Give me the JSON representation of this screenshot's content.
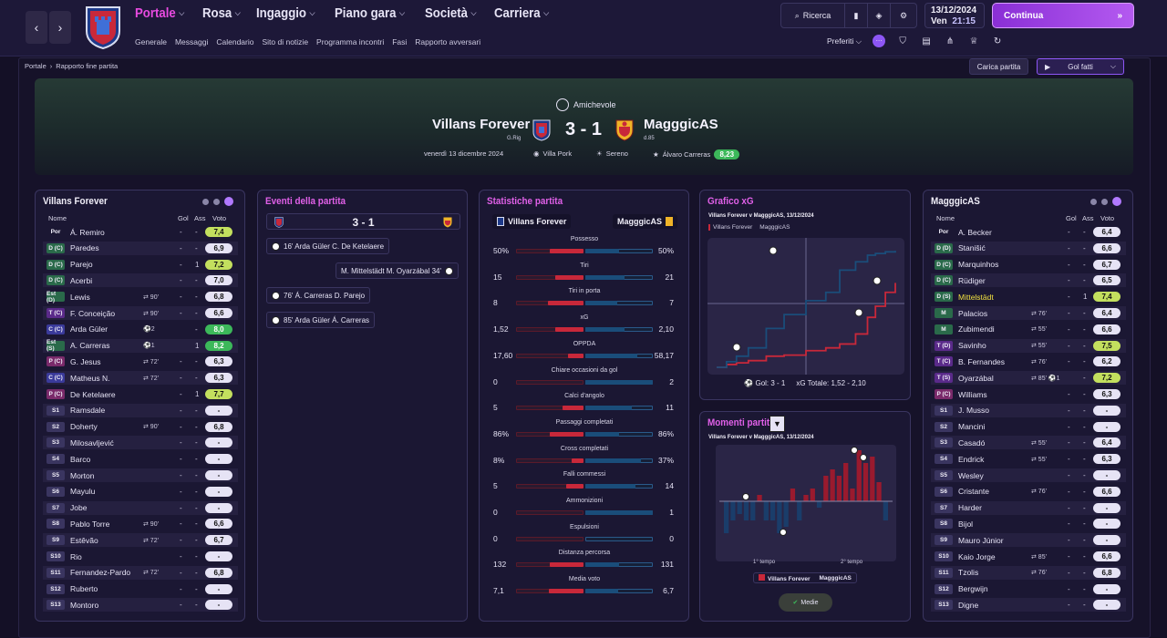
{
  "topbar": {
    "menu": [
      "Portale",
      "Rosa",
      "Ingaggio",
      "Piano gara",
      "Società",
      "Carriera"
    ],
    "submenu": [
      "Generale",
      "Messaggi",
      "Calendario",
      "Sito di notizie",
      "Programma incontri",
      "Fasi",
      "Rapporto avversari"
    ],
    "search": "Ricerca",
    "date": "13/12/2024",
    "day": "Ven",
    "time": "21:15",
    "continue": "Continua",
    "prefs": "Preferiti"
  },
  "crumb": [
    "Portale",
    "Rapporto fine partita"
  ],
  "buttons": {
    "carica": "Carica partita",
    "golfatti": "Gol fatti"
  },
  "match": {
    "competition": "Amichevole",
    "home": "Villans Forever",
    "home_sub": "G.Rig",
    "away": "MagggicAS",
    "away_sub": "d.85",
    "score": "3 - 1",
    "date": "venerdì 13 dicembre 2024",
    "stadium": "Villa Pork",
    "weather": "Sereno",
    "mvp": "Álvaro Carreras",
    "mvp_rating": "8,23"
  },
  "colors": {
    "accent": "#e84be0",
    "home": "#c8283a",
    "away": "#1a4d7a",
    "good": "#3cb85a",
    "ok": "#c3df5e",
    "base": "#e6e3f5"
  },
  "home_panel": {
    "title": "Villans Forever",
    "headers": [
      "Nome",
      "Gol",
      "Ass",
      "Voto"
    ],
    "players": [
      {
        "pos": "Por",
        "pc": "none",
        "name": "Á. Remiro",
        "evt": "",
        "gol": "-",
        "ass": "-",
        "vote": "7,4",
        "vc": "#c3df5e"
      },
      {
        "pos": "D (C)",
        "pc": "#2a6a4a",
        "name": "Paredes",
        "evt": "",
        "gol": "-",
        "ass": "-",
        "vote": "6,9",
        "vc": "#e6e3f5"
      },
      {
        "pos": "D (C)",
        "pc": "#2a6a4a",
        "name": "Parejo",
        "evt": "",
        "gol": "-",
        "ass": "1",
        "vote": "7,2",
        "vc": "#c3df5e"
      },
      {
        "pos": "D (C)",
        "pc": "#2a6a4a",
        "name": "Acerbi",
        "evt": "",
        "gol": "-",
        "ass": "-",
        "vote": "7,0",
        "vc": "#e6e3f5"
      },
      {
        "pos": "Est (D)",
        "pc": "#2a6a4a",
        "name": "Lewis",
        "evt": "⇄ 90'",
        "gol": "-",
        "ass": "-",
        "vote": "6,8",
        "vc": "#e6e3f5"
      },
      {
        "pos": "T (C)",
        "pc": "#5a2a8a",
        "name": "F. Conceição",
        "evt": "⇄ 90'",
        "gol": "-",
        "ass": "-",
        "vote": "6,6",
        "vc": "#e6e3f5"
      },
      {
        "pos": "C (C)",
        "pc": "#3a3a9a",
        "name": "Arda Güler",
        "evt": "⚽2",
        "gol": "",
        "ass": "-",
        "vote": "8,0",
        "vc": "#3cb85a"
      },
      {
        "pos": "Est (S)",
        "pc": "#2a6a4a",
        "name": "A. Carreras",
        "evt": "⚽1",
        "gol": "",
        "ass": "1",
        "vote": "8,2",
        "vc": "#3cb85a"
      },
      {
        "pos": "P (C)",
        "pc": "#7a2a6a",
        "name": "G. Jesus",
        "evt": "⇄ 72'",
        "gol": "-",
        "ass": "-",
        "vote": "6,3",
        "vc": "#e6e3f5"
      },
      {
        "pos": "C (C)",
        "pc": "#3a3a9a",
        "name": "Matheus N.",
        "evt": "⇄ 72'",
        "gol": "-",
        "ass": "-",
        "vote": "6,3",
        "vc": "#e6e3f5"
      },
      {
        "pos": "P (C)",
        "pc": "#7a2a6a",
        "name": "De Ketelaere",
        "evt": "",
        "gol": "-",
        "ass": "1",
        "vote": "7,7",
        "vc": "#c3df5e"
      },
      {
        "pos": "S1",
        "pc": "#3a3560",
        "name": "Ramsdale",
        "evt": "",
        "gol": "-",
        "ass": "-",
        "vote": "-",
        "vc": "#e6e3f5"
      },
      {
        "pos": "S2",
        "pc": "#3a3560",
        "name": "Doherty",
        "evt": "⇄ 90'",
        "gol": "-",
        "ass": "-",
        "vote": "6,8",
        "vc": "#e6e3f5"
      },
      {
        "pos": "S3",
        "pc": "#3a3560",
        "name": "Milosavljević",
        "evt": "",
        "gol": "-",
        "ass": "-",
        "vote": "-",
        "vc": "#e6e3f5"
      },
      {
        "pos": "S4",
        "pc": "#3a3560",
        "name": "Barco",
        "evt": "",
        "gol": "-",
        "ass": "-",
        "vote": "-",
        "vc": "#e6e3f5"
      },
      {
        "pos": "S5",
        "pc": "#3a3560",
        "name": "Morton",
        "evt": "",
        "gol": "-",
        "ass": "-",
        "vote": "-",
        "vc": "#e6e3f5"
      },
      {
        "pos": "S6",
        "pc": "#3a3560",
        "name": "Mayulu",
        "evt": "",
        "gol": "-",
        "ass": "-",
        "vote": "-",
        "vc": "#e6e3f5"
      },
      {
        "pos": "S7",
        "pc": "#3a3560",
        "name": "Jobe",
        "evt": "",
        "gol": "-",
        "ass": "-",
        "vote": "-",
        "vc": "#e6e3f5"
      },
      {
        "pos": "S8",
        "pc": "#3a3560",
        "name": "Pablo Torre",
        "evt": "⇄ 90'",
        "gol": "-",
        "ass": "-",
        "vote": "6,6",
        "vc": "#e6e3f5"
      },
      {
        "pos": "S9",
        "pc": "#3a3560",
        "name": "Estêvão",
        "evt": "⇄ 72'",
        "gol": "-",
        "ass": "-",
        "vote": "6,7",
        "vc": "#e6e3f5"
      },
      {
        "pos": "S10",
        "pc": "#3a3560",
        "name": "Rio",
        "evt": "",
        "gol": "-",
        "ass": "-",
        "vote": "-",
        "vc": "#e6e3f5"
      },
      {
        "pos": "S11",
        "pc": "#3a3560",
        "name": "Fernandez-Pardo",
        "evt": "⇄ 72'",
        "gol": "-",
        "ass": "-",
        "vote": "6,8",
        "vc": "#e6e3f5"
      },
      {
        "pos": "S12",
        "pc": "#3a3560",
        "name": "Ruberto",
        "evt": "",
        "gol": "-",
        "ass": "-",
        "vote": "-",
        "vc": "#e6e3f5"
      },
      {
        "pos": "S13",
        "pc": "#3a3560",
        "name": "Montoro",
        "evt": "",
        "gol": "-",
        "ass": "-",
        "vote": "-",
        "vc": "#e6e3f5"
      }
    ]
  },
  "away_panel": {
    "title": "MagggicAS",
    "headers": [
      "Nome",
      "Gol",
      "Ass",
      "Voto"
    ],
    "players": [
      {
        "pos": "Por",
        "pc": "none",
        "name": "A. Becker",
        "evt": "",
        "gol": "-",
        "ass": "-",
        "vote": "6,4",
        "vc": "#e6e3f5"
      },
      {
        "pos": "D (D)",
        "pc": "#2a6a4a",
        "name": "Stanišić",
        "evt": "",
        "gol": "-",
        "ass": "-",
        "vote": "6,6",
        "vc": "#e6e3f5"
      },
      {
        "pos": "D (C)",
        "pc": "#2a6a4a",
        "name": "Marquinhos",
        "evt": "",
        "gol": "-",
        "ass": "-",
        "vote": "6,7",
        "vc": "#e6e3f5"
      },
      {
        "pos": "D (C)",
        "pc": "#2a6a4a",
        "name": "Rüdiger",
        "evt": "",
        "gol": "-",
        "ass": "-",
        "vote": "6,5",
        "vc": "#e6e3f5"
      },
      {
        "pos": "D (S)",
        "pc": "#2a6a4a",
        "name": "Mittelstädt",
        "evt": "",
        "gol": "-",
        "ass": "1",
        "vote": "7,4",
        "vc": "#c3df5e",
        "hl": true
      },
      {
        "pos": "M",
        "pc": "#2a6a4a",
        "name": "Palacios",
        "evt": "⇄ 76'",
        "gol": "-",
        "ass": "-",
        "vote": "6,4",
        "vc": "#e6e3f5"
      },
      {
        "pos": "M",
        "pc": "#2a6a4a",
        "name": "Zubimendi",
        "evt": "⇄ 55'",
        "gol": "-",
        "ass": "-",
        "vote": "6,6",
        "vc": "#e6e3f5"
      },
      {
        "pos": "T (D)",
        "pc": "#5a2a8a",
        "name": "Savinho",
        "evt": "⇄ 55'",
        "gol": "-",
        "ass": "-",
        "vote": "7,5",
        "vc": "#c3df5e"
      },
      {
        "pos": "T (C)",
        "pc": "#5a2a8a",
        "name": "B. Fernandes",
        "evt": "⇄ 76'",
        "gol": "-",
        "ass": "-",
        "vote": "6,2",
        "vc": "#e6e3f5"
      },
      {
        "pos": "T (S)",
        "pc": "#5a2a8a",
        "name": "Oyarzábal",
        "evt": "⇄ 85' ⚽1",
        "gol": "",
        "ass": "-",
        "vote": "7,2",
        "vc": "#c3df5e"
      },
      {
        "pos": "P (C)",
        "pc": "#7a2a6a",
        "name": "Williams",
        "evt": "",
        "gol": "-",
        "ass": "-",
        "vote": "6,3",
        "vc": "#e6e3f5"
      },
      {
        "pos": "S1",
        "pc": "#3a3560",
        "name": "J. Musso",
        "evt": "",
        "gol": "-",
        "ass": "-",
        "vote": "-",
        "vc": "#e6e3f5"
      },
      {
        "pos": "S2",
        "pc": "#3a3560",
        "name": "Mancini",
        "evt": "",
        "gol": "-",
        "ass": "-",
        "vote": "-",
        "vc": "#e6e3f5"
      },
      {
        "pos": "S3",
        "pc": "#3a3560",
        "name": "Casadó",
        "evt": "⇄ 55'",
        "gol": "-",
        "ass": "-",
        "vote": "6,4",
        "vc": "#e6e3f5"
      },
      {
        "pos": "S4",
        "pc": "#3a3560",
        "name": "Endrick",
        "evt": "⇄ 55'",
        "gol": "-",
        "ass": "-",
        "vote": "6,3",
        "vc": "#e6e3f5"
      },
      {
        "pos": "S5",
        "pc": "#3a3560",
        "name": "Wesley",
        "evt": "",
        "gol": "-",
        "ass": "-",
        "vote": "-",
        "vc": "#e6e3f5"
      },
      {
        "pos": "S6",
        "pc": "#3a3560",
        "name": "Cristante",
        "evt": "⇄ 76'",
        "gol": "-",
        "ass": "-",
        "vote": "6,6",
        "vc": "#e6e3f5"
      },
      {
        "pos": "S7",
        "pc": "#3a3560",
        "name": "Harder",
        "evt": "",
        "gol": "-",
        "ass": "-",
        "vote": "-",
        "vc": "#e6e3f5"
      },
      {
        "pos": "S8",
        "pc": "#3a3560",
        "name": "Bijol",
        "evt": "",
        "gol": "-",
        "ass": "-",
        "vote": "-",
        "vc": "#e6e3f5"
      },
      {
        "pos": "S9",
        "pc": "#3a3560",
        "name": "Mauro Júnior",
        "evt": "",
        "gol": "-",
        "ass": "-",
        "vote": "-",
        "vc": "#e6e3f5"
      },
      {
        "pos": "S10",
        "pc": "#3a3560",
        "name": "Kaio Jorge",
        "evt": "⇄ 85'",
        "gol": "-",
        "ass": "-",
        "vote": "6,6",
        "vc": "#e6e3f5"
      },
      {
        "pos": "S11",
        "pc": "#3a3560",
        "name": "Tzolis",
        "evt": "⇄ 76'",
        "gol": "-",
        "ass": "-",
        "vote": "6,8",
        "vc": "#e6e3f5"
      },
      {
        "pos": "S12",
        "pc": "#3a3560",
        "name": "Bergwijn",
        "evt": "",
        "gol": "-",
        "ass": "-",
        "vote": "-",
        "vc": "#e6e3f5"
      },
      {
        "pos": "S13",
        "pc": "#3a3560",
        "name": "Digne",
        "evt": "",
        "gol": "-",
        "ass": "-",
        "vote": "-",
        "vc": "#e6e3f5"
      }
    ]
  },
  "events": {
    "title": "Eventi della partita",
    "score": "3 - 1",
    "items": [
      {
        "side": "home",
        "text": "16' Arda Güler  C. De Ketelaere"
      },
      {
        "side": "away",
        "text": "M. Mittelstädt  M. Oyarzábal  34'"
      },
      {
        "side": "home",
        "text": "76' Á. Carreras  D. Parejo"
      },
      {
        "side": "home",
        "text": "85' Arda Güler  Á. Carreras"
      }
    ]
  },
  "stats": {
    "title": "Statistiche partita",
    "home": "Villans Forever",
    "away": "MagggicAS",
    "rows": [
      {
        "label": "Possesso",
        "h": "50%",
        "a": "50%",
        "hv": 50,
        "av": 50
      },
      {
        "label": "Tiri",
        "h": "15",
        "a": "21",
        "hv": 15,
        "av": 21
      },
      {
        "label": "Tiri in porta",
        "h": "8",
        "a": "7",
        "hv": 8,
        "av": 7
      },
      {
        "label": "xG",
        "h": "1,52",
        "a": "2,10",
        "hv": 1.52,
        "av": 2.1
      },
      {
        "label": "OPPDA",
        "h": "17,60",
        "a": "58,17",
        "hv": 17.6,
        "av": 58.17
      },
      {
        "label": "Chiare occasioni da gol",
        "h": "0",
        "a": "2",
        "hv": 0,
        "av": 2
      },
      {
        "label": "Calci d'angolo",
        "h": "5",
        "a": "11",
        "hv": 5,
        "av": 11
      },
      {
        "label": "Passaggi completati",
        "h": "86%",
        "a": "86%",
        "hv": 86,
        "av": 86
      },
      {
        "label": "Cross completati",
        "h": "8%",
        "a": "37%",
        "hv": 8,
        "av": 37
      },
      {
        "label": "Falli commessi",
        "h": "5",
        "a": "14",
        "hv": 5,
        "av": 14
      },
      {
        "label": "Ammonizioni",
        "h": "0",
        "a": "1",
        "hv": 0,
        "av": 1
      },
      {
        "label": "Espulsioni",
        "h": "0",
        "a": "0",
        "hv": 0,
        "av": 0
      },
      {
        "label": "Distanza percorsa",
        "h": "132",
        "a": "131",
        "hv": 132,
        "av": 131
      },
      {
        "label": "Media voto",
        "h": "7,1",
        "a": "6,7",
        "hv": 7.1,
        "av": 6.7
      }
    ]
  },
  "xg": {
    "title": "Grafico xG",
    "subtitle": "Villans Forever v MagggicAS, 13/12/2024",
    "legend_home": "Villans Forever",
    "legend_away": "MagggicAS",
    "footer_gol": "Gol: 3 - 1",
    "footer_xg": "xG  Totale: 1,52 - 2,10"
  },
  "momenti": {
    "title": "Momenti partita",
    "subtitle": "Villans Forever v MagggicAS, 13/12/2024",
    "first": "1° tempo",
    "second": "2° tempo",
    "legend_home": "Villans Forever",
    "legend_away": "MagggicAS",
    "button": "Medie"
  },
  "chart_data": [
    {
      "type": "line",
      "title": "Grafico xG",
      "series": [
        {
          "name": "Villans Forever",
          "x": [
            0,
            5,
            10,
            16,
            25,
            34,
            45,
            55,
            62,
            70,
            76,
            80,
            85,
            90
          ],
          "y": [
            0,
            0.05,
            0.08,
            0.12,
            0.2,
            0.22,
            0.3,
            0.35,
            0.42,
            0.6,
            0.9,
            1.1,
            1.35,
            1.52
          ]
        },
        {
          "name": "MagggicAS",
          "x": [
            0,
            5,
            10,
            16,
            25,
            34,
            45,
            55,
            62,
            70,
            76,
            80,
            85,
            90
          ],
          "y": [
            0,
            0.1,
            0.2,
            0.35,
            0.7,
            0.95,
            1.2,
            1.35,
            1.75,
            1.9,
            2.02,
            2.05,
            2.08,
            2.1
          ]
        }
      ]
    },
    {
      "type": "bar",
      "title": "Momenti partita",
      "values": [
        -5,
        -3,
        -2,
        -3,
        -3,
        1,
        -3,
        -3,
        -5,
        -4,
        2,
        -3,
        1,
        2,
        -1,
        4,
        5,
        4,
        6,
        2,
        8,
        6,
        7,
        3,
        -3
      ]
    }
  ]
}
